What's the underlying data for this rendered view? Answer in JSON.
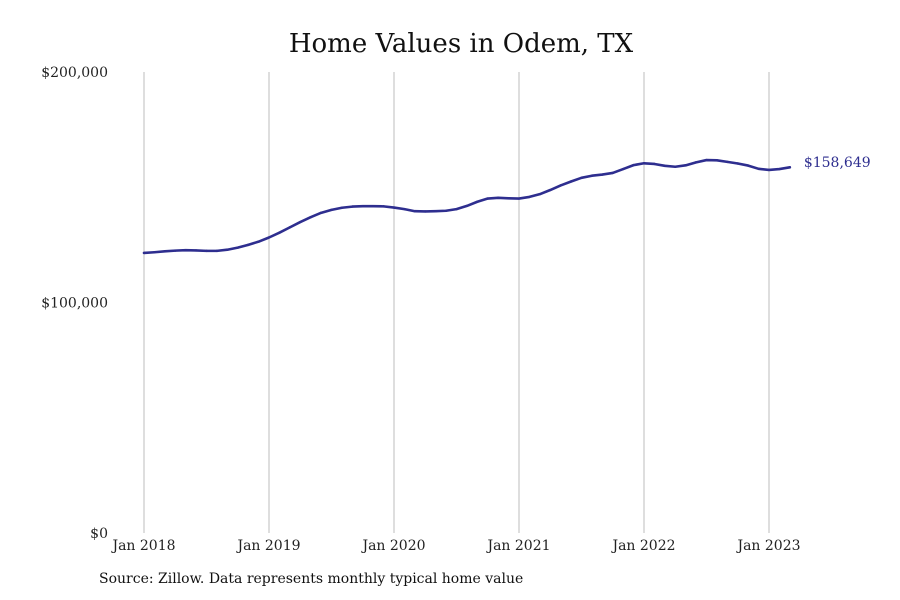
{
  "chart_data": {
    "type": "line",
    "title": "Home Values in Odem, TX",
    "xlabel": "",
    "ylabel": "",
    "ylim": [
      0,
      200000
    ],
    "y_ticks": [
      {
        "value": 0,
        "label": "$0"
      },
      {
        "value": 100000,
        "label": "$100,000"
      },
      {
        "value": 200000,
        "label": "$200,000"
      }
    ],
    "x_ticks": [
      {
        "date": "2018-01",
        "label": "Jan 2018"
      },
      {
        "date": "2019-01",
        "label": "Jan 2019"
      },
      {
        "date": "2020-01",
        "label": "Jan 2020"
      },
      {
        "date": "2021-01",
        "label": "Jan 2021"
      },
      {
        "date": "2022-01",
        "label": "Jan 2022"
      },
      {
        "date": "2023-01",
        "label": "Jan 2023"
      }
    ],
    "vertical_gridlines": true,
    "line_color": "#2e2e8f",
    "series": [
      {
        "end_label": "$158,649",
        "points": [
          [
            "2018-01",
            121500
          ],
          [
            "2018-02",
            121800
          ],
          [
            "2018-03",
            122200
          ],
          [
            "2018-04",
            122500
          ],
          [
            "2018-05",
            122700
          ],
          [
            "2018-06",
            122600
          ],
          [
            "2018-07",
            122400
          ],
          [
            "2018-08",
            122400
          ],
          [
            "2018-09",
            122900
          ],
          [
            "2018-10",
            123800
          ],
          [
            "2018-11",
            125000
          ],
          [
            "2018-12",
            126400
          ],
          [
            "2019-01",
            128200
          ],
          [
            "2019-02",
            130300
          ],
          [
            "2019-03",
            132600
          ],
          [
            "2019-04",
            134900
          ],
          [
            "2019-05",
            137000
          ],
          [
            "2019-06",
            138900
          ],
          [
            "2019-07",
            140200
          ],
          [
            "2019-08",
            141100
          ],
          [
            "2019-09",
            141600
          ],
          [
            "2019-10",
            141800
          ],
          [
            "2019-11",
            141800
          ],
          [
            "2019-12",
            141700
          ],
          [
            "2020-01",
            141200
          ],
          [
            "2020-02",
            140500
          ],
          [
            "2020-03",
            139600
          ],
          [
            "2020-04",
            139500
          ],
          [
            "2020-05",
            139600
          ],
          [
            "2020-06",
            139800
          ],
          [
            "2020-07",
            140500
          ],
          [
            "2020-08",
            141900
          ],
          [
            "2020-09",
            143700
          ],
          [
            "2020-10",
            145100
          ],
          [
            "2020-11",
            145400
          ],
          [
            "2020-12",
            145200
          ],
          [
            "2021-01",
            145100
          ],
          [
            "2021-02",
            145800
          ],
          [
            "2021-03",
            147000
          ],
          [
            "2021-04",
            148800
          ],
          [
            "2021-05",
            150800
          ],
          [
            "2021-06",
            152500
          ],
          [
            "2021-07",
            154100
          ],
          [
            "2021-08",
            155000
          ],
          [
            "2021-09",
            155500
          ],
          [
            "2021-10",
            156200
          ],
          [
            "2021-11",
            157900
          ],
          [
            "2021-12",
            159600
          ],
          [
            "2022-01",
            160400
          ],
          [
            "2022-02",
            160100
          ],
          [
            "2022-03",
            159300
          ],
          [
            "2022-04",
            158900
          ],
          [
            "2022-05",
            159500
          ],
          [
            "2022-06",
            160800
          ],
          [
            "2022-07",
            161800
          ],
          [
            "2022-08",
            161700
          ],
          [
            "2022-09",
            161000
          ],
          [
            "2022-10",
            160300
          ],
          [
            "2022-11",
            159400
          ],
          [
            "2022-12",
            158000
          ],
          [
            "2023-01",
            157500
          ],
          [
            "2023-02",
            157900
          ],
          [
            "2023-03",
            158649
          ]
        ]
      }
    ]
  },
  "footer": {
    "source": "Source: Zillow. Data represents monthly typical home value"
  }
}
